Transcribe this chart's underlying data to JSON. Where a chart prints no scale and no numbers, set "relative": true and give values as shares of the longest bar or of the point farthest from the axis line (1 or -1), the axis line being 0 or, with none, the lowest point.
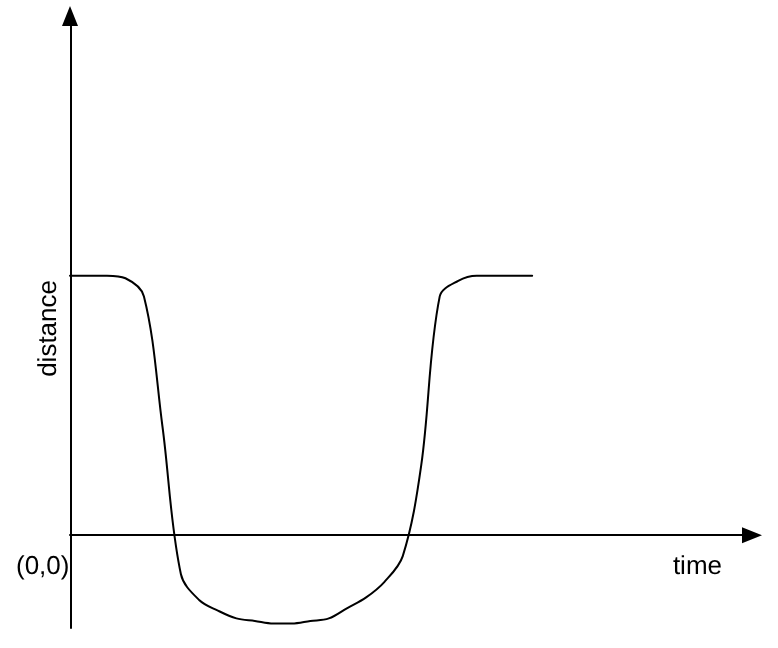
{
  "chart_data": {
    "type": "line",
    "relative": true,
    "xlabel": "time",
    "ylabel": "distance",
    "annotations": [
      "(0,0)"
    ],
    "marker": "none",
    "line_style": "solid",
    "grid": false,
    "categories": [
      null,
      null,
      null,
      null,
      null,
      null,
      null,
      null,
      null,
      null,
      null,
      null,
      null,
      null,
      null,
      null,
      null,
      null,
      null,
      null,
      null,
      null,
      null,
      null,
      null,
      null,
      null,
      null,
      null,
      null,
      null,
      null,
      null,
      null,
      null,
      null,
      null,
      null
    ],
    "series": [
      {
        "color": "#000000",
        "values": [
          1.0,
          1.0,
          1.0,
          0.99,
          0.92,
          0.42,
          -0.15,
          -0.25,
          -0.29,
          -0.32,
          -0.33,
          -0.34,
          -0.34,
          -0.33,
          -0.32,
          -0.28,
          -0.24,
          -0.18,
          -0.08,
          0.27,
          0.92,
          0.98,
          1.0,
          1.0,
          1.0,
          1.0,
          null,
          null,
          null,
          null,
          null,
          null,
          null,
          null,
          null,
          null,
          null,
          null
        ]
      }
    ]
  }
}
